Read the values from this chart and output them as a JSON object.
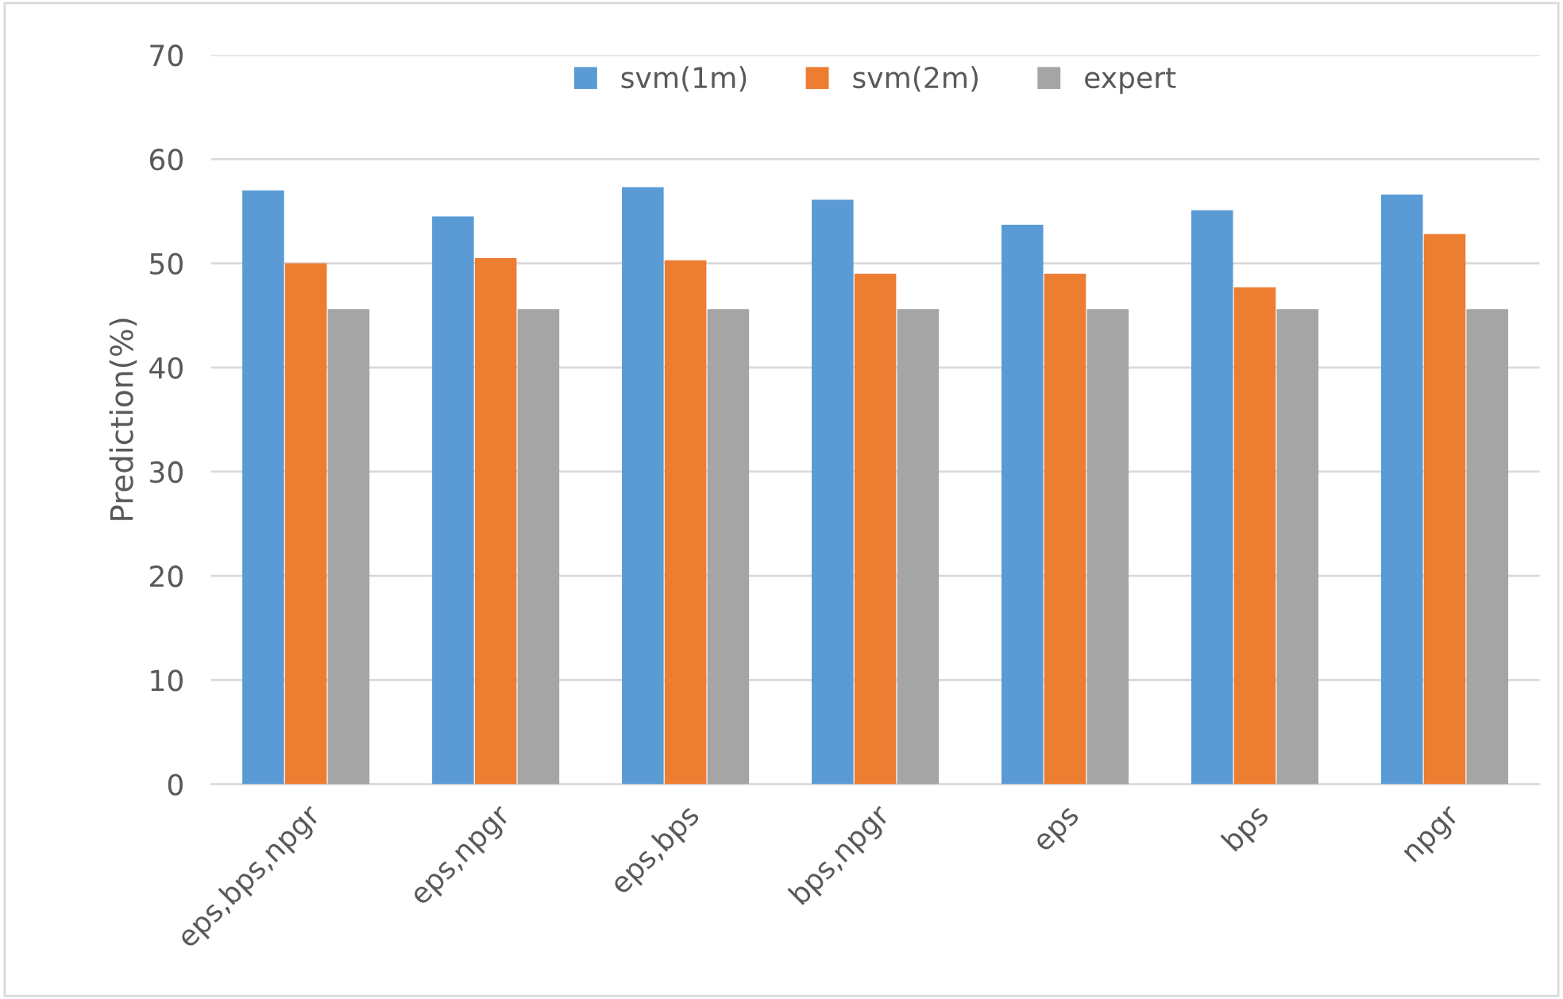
{
  "chart_data": {
    "type": "bar",
    "ylabel": "Prediction(%)",
    "categories": [
      "eps,bps,npgr",
      "eps,npgr",
      "eps,bps",
      "bps,npgr",
      "eps",
      "bps",
      "npgr"
    ],
    "series": [
      {
        "name": "svm(1m)",
        "color": "#5b9bd5",
        "values": [
          57.0,
          54.5,
          57.3,
          56.1,
          53.7,
          55.1,
          56.6
        ]
      },
      {
        "name": "svm(2m)",
        "color": "#ed7d31",
        "values": [
          50.0,
          50.5,
          50.3,
          49.0,
          49.0,
          47.7,
          52.8
        ]
      },
      {
        "name": "expert",
        "color": "#a5a5a5",
        "values": [
          45.6,
          45.6,
          45.6,
          45.6,
          45.6,
          45.6,
          45.6
        ]
      }
    ],
    "ylim": [
      0,
      70
    ],
    "yticks": [
      0,
      10,
      20,
      30,
      40,
      50,
      60,
      70
    ],
    "grid": "y",
    "legend": "top"
  }
}
